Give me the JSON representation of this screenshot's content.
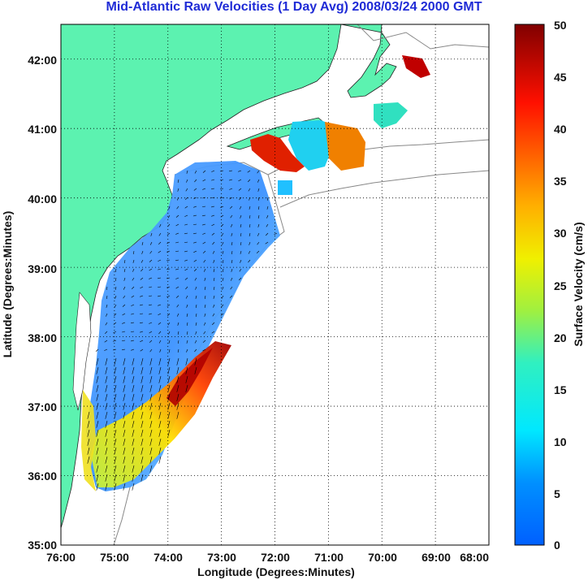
{
  "title": "Mid-Atlantic Raw Velocities (1 Day Avg) 2008/03/24 2000 GMT",
  "map": {
    "xlabel": "Longitude (Degrees:Minutes)",
    "ylabel": "Latitude (Degrees:Minutes)",
    "lon_ticks": [
      "76:00",
      "75:00",
      "74:00",
      "73:00",
      "72:00",
      "71:00",
      "70:00",
      "69:00",
      "68:00"
    ],
    "lat_ticks": [
      "35:00",
      "36:00",
      "37:00",
      "38:00",
      "39:00",
      "40:00",
      "41:00",
      "42:00"
    ],
    "lon_range": [
      -76,
      -68
    ],
    "lat_range": [
      35,
      42.5
    ],
    "land_color": "#5cf2b0",
    "grid": "dotted"
  },
  "colorbar": {
    "label": "Surface Velocity (cm/s)",
    "ticks": [
      "0",
      "5",
      "10",
      "15",
      "20",
      "25",
      "30",
      "35",
      "40",
      "45",
      "50"
    ],
    "range": [
      0,
      50
    ],
    "colormap": "jet"
  }
}
